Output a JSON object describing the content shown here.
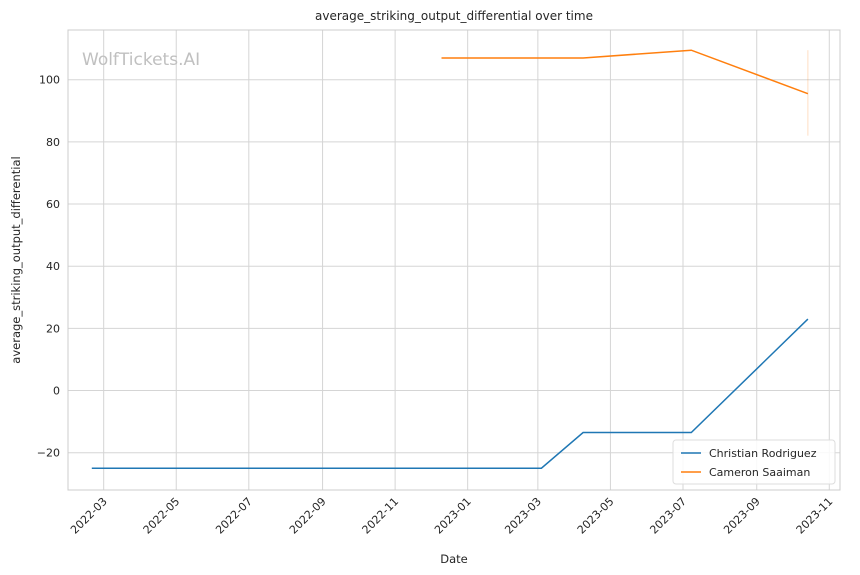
{
  "chart_data": {
    "type": "line",
    "title": "average_striking_output_differential over time",
    "xlabel": "Date",
    "ylabel": "average_striking_output_differential",
    "watermark": "WolfTickets.AI",
    "xlim": [
      "2022-01-30",
      "2023-11-10"
    ],
    "ylim": [
      -32,
      116
    ],
    "grid": true,
    "legend_position": "lower-right",
    "x_ticks": [
      "2022-03",
      "2022-05",
      "2022-07",
      "2022-09",
      "2022-11",
      "2023-01",
      "2023-03",
      "2023-05",
      "2023-07",
      "2023-09",
      "2023-11"
    ],
    "y_ticks": [
      -20,
      0,
      20,
      40,
      60,
      80,
      100
    ],
    "series": [
      {
        "name": "Christian Rodriguez",
        "color": "#1f77b4",
        "points": [
          {
            "x": "2022-02-19",
            "y": -25
          },
          {
            "x": "2023-03-04",
            "y": -25
          },
          {
            "x": "2023-04-08",
            "y": -13.5
          },
          {
            "x": "2023-07-08",
            "y": -13.5
          },
          {
            "x": "2023-10-14",
            "y": 23
          }
        ]
      },
      {
        "name": "Cameron Saaiman",
        "color": "#ff7f0e",
        "points": [
          {
            "x": "2022-12-10",
            "y": 107
          },
          {
            "x": "2023-04-08",
            "y": 107
          },
          {
            "x": "2023-07-08",
            "y": 109.5
          },
          {
            "x": "2023-10-14",
            "y": 95.5
          }
        ],
        "error_bar": {
          "x": "2023-10-14",
          "low": 82,
          "high": 109.5
        }
      }
    ]
  }
}
